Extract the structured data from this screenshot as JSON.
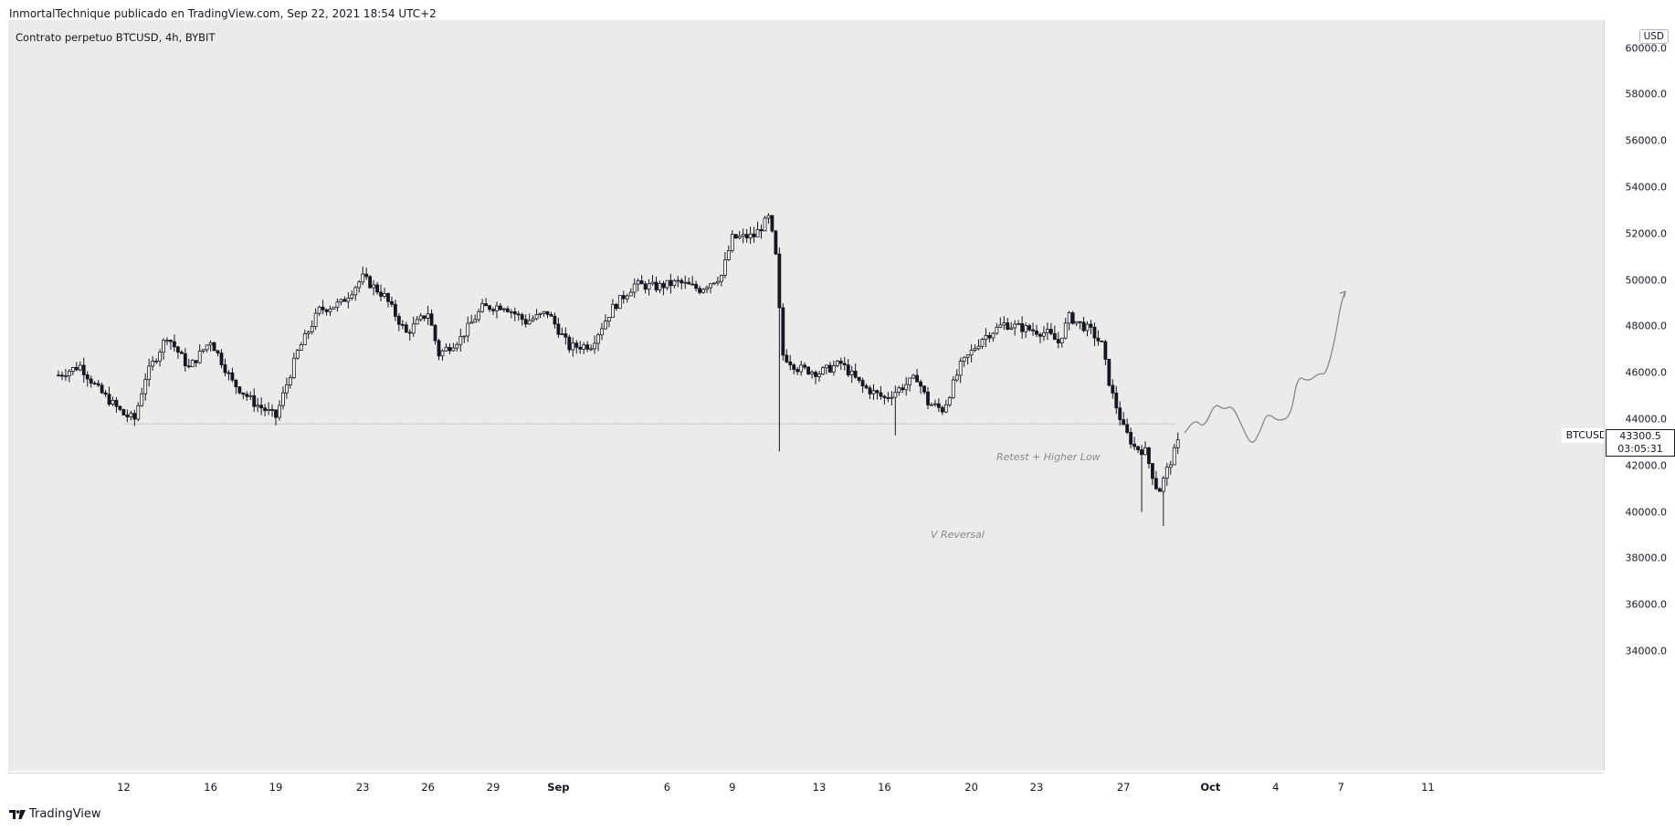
{
  "header": {
    "publisher_line": "InmortalTechnique publicado en TradingView.com, Sep 22, 2021 18:54 UTC+2"
  },
  "chart_header": {
    "symbol_line": "Contrato perpetuo BTCUSD, 4h, BYBIT"
  },
  "footer": {
    "brand": "TradingView",
    "logo_icon": "tradingview-logo-icon"
  },
  "price_axis": {
    "currency": "USD",
    "ticks": [
      "60000.0",
      "58000.0",
      "56000.0",
      "54000.0",
      "52000.0",
      "50000.0",
      "48000.0",
      "46000.0",
      "44000.0",
      "42000.0",
      "40000.0",
      "38000.0",
      "36000.0",
      "34000.0"
    ],
    "current_price": "43300.5",
    "countdown": "03:05:31",
    "symbol_tag": "BTCUSD"
  },
  "time_axis": {
    "ticks": [
      "12",
      "16",
      "19",
      "23",
      "26",
      "29",
      "Sep",
      "6",
      "9",
      "13",
      "16",
      "20",
      "23",
      "27",
      "Oct",
      "4",
      "7",
      "11"
    ]
  },
  "annotations": {
    "v_reversal": "V Reversal",
    "retest": "Retest + Higher Low"
  },
  "colors": {
    "background": "#edebea",
    "up_candle": "#ffffff",
    "down_candle": "#131722",
    "wick": "#131722",
    "projection": "#888888"
  },
  "chart_data": {
    "type": "candlestick",
    "timeframe": "4h",
    "ylim": [
      34000,
      60000
    ],
    "x_range": [
      "Aug 9",
      "Oct 11"
    ],
    "horizontal_level": 43800,
    "anchors": [
      {
        "day": 0.0,
        "price": 45900
      },
      {
        "day": 1.0,
        "price": 46300
      },
      {
        "day": 1.8,
        "price": 45300
      },
      {
        "day": 3.0,
        "price": 44200
      },
      {
        "day": 3.5,
        "price": 44000
      },
      {
        "day": 4.0,
        "price": 45800
      },
      {
        "day": 5.0,
        "price": 47600
      },
      {
        "day": 6.0,
        "price": 46200
      },
      {
        "day": 7.0,
        "price": 47400
      },
      {
        "day": 8.0,
        "price": 45600
      },
      {
        "day": 9.0,
        "price": 44700
      },
      {
        "day": 10.0,
        "price": 44100
      },
      {
        "day": 11.0,
        "price": 46900
      },
      {
        "day": 12.0,
        "price": 48700
      },
      {
        "day": 13.0,
        "price": 49000
      },
      {
        "day": 14.0,
        "price": 50100
      },
      {
        "day": 15.0,
        "price": 49300
      },
      {
        "day": 16.0,
        "price": 47700
      },
      {
        "day": 17.0,
        "price": 48600
      },
      {
        "day": 17.5,
        "price": 46800
      },
      {
        "day": 18.5,
        "price": 47500
      },
      {
        "day": 19.5,
        "price": 48800
      },
      {
        "day": 20.5,
        "price": 48900
      },
      {
        "day": 21.5,
        "price": 48200
      },
      {
        "day": 22.5,
        "price": 48600
      },
      {
        "day": 23.5,
        "price": 47100
      },
      {
        "day": 24.5,
        "price": 47200
      },
      {
        "day": 25.5,
        "price": 48800
      },
      {
        "day": 26.5,
        "price": 49800
      },
      {
        "day": 27.5,
        "price": 49700
      },
      {
        "day": 28.5,
        "price": 49900
      },
      {
        "day": 29.5,
        "price": 49600
      },
      {
        "day": 30.5,
        "price": 50200
      },
      {
        "day": 31.0,
        "price": 51800
      },
      {
        "day": 32.0,
        "price": 51900
      },
      {
        "day": 32.7,
        "price": 52700
      },
      {
        "day": 33.0,
        "price": 51000
      },
      {
        "day": 33.3,
        "price": 46800
      },
      {
        "day": 34.0,
        "price": 46200
      },
      {
        "day": 35.0,
        "price": 46000
      },
      {
        "day": 36.0,
        "price": 46400
      },
      {
        "day": 37.0,
        "price": 45400
      },
      {
        "day": 38.0,
        "price": 44900
      },
      {
        "day": 39.0,
        "price": 45500
      },
      {
        "day": 39.5,
        "price": 45800
      },
      {
        "day": 40.0,
        "price": 44700
      },
      {
        "day": 40.7,
        "price": 44400
      },
      {
        "day": 41.5,
        "price": 46300
      },
      {
        "day": 42.5,
        "price": 47500
      },
      {
        "day": 43.5,
        "price": 48100
      },
      {
        "day": 44.5,
        "price": 47900
      },
      {
        "day": 45.5,
        "price": 47700
      },
      {
        "day": 46.0,
        "price": 47300
      },
      {
        "day": 46.5,
        "price": 48400
      },
      {
        "day": 47.5,
        "price": 47800
      },
      {
        "day": 48.0,
        "price": 47200
      },
      {
        "day": 48.4,
        "price": 45300
      },
      {
        "day": 49.0,
        "price": 43600
      },
      {
        "day": 49.5,
        "price": 42800
      },
      {
        "day": 50.0,
        "price": 42600
      },
      {
        "day": 50.6,
        "price": 40800
      },
      {
        "day": 51.0,
        "price": 41800
      },
      {
        "day": 51.6,
        "price": 43200
      }
    ],
    "spikes": [
      {
        "day": 33.2,
        "price": 42600
      },
      {
        "day": 38.5,
        "price": 43300
      },
      {
        "day": 49.8,
        "price": 40000
      },
      {
        "day": 50.8,
        "price": 39400
      }
    ],
    "projection": [
      {
        "day": 51.8,
        "price": 43400
      },
      {
        "day": 52.3,
        "price": 44000
      },
      {
        "day": 52.7,
        "price": 43600
      },
      {
        "day": 53.2,
        "price": 44700
      },
      {
        "day": 53.6,
        "price": 44400
      },
      {
        "day": 54.0,
        "price": 44600
      },
      {
        "day": 54.4,
        "price": 43800
      },
      {
        "day": 54.9,
        "price": 42800
      },
      {
        "day": 55.3,
        "price": 43500
      },
      {
        "day": 55.6,
        "price": 44300
      },
      {
        "day": 56.1,
        "price": 43900
      },
      {
        "day": 56.7,
        "price": 44100
      },
      {
        "day": 57.0,
        "price": 45900
      },
      {
        "day": 57.5,
        "price": 45600
      },
      {
        "day": 58.0,
        "price": 46000
      },
      {
        "day": 58.3,
        "price": 45900
      },
      {
        "day": 58.7,
        "price": 47300
      },
      {
        "day": 59.0,
        "price": 49000
      },
      {
        "day": 59.2,
        "price": 49500
      }
    ]
  }
}
